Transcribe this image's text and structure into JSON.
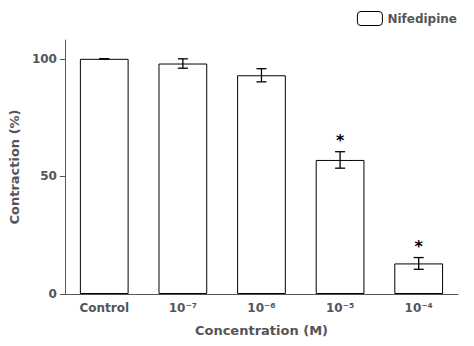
{
  "chart_data": {
    "type": "bar",
    "categories": [
      "Control",
      "10⁻⁷",
      "10⁻⁶",
      "10⁻⁵",
      "10⁻⁴"
    ],
    "series": [
      {
        "name": "Nifedipine",
        "color": "#ffffff",
        "values": [
          100,
          98,
          93,
          57,
          13
        ],
        "errors": [
          0,
          2.0,
          2.8,
          3.5,
          2.5
        ]
      }
    ],
    "xlabel": "Concentration (M)",
    "ylabel": "Contraction (%)",
    "ylim": [
      0,
      108
    ],
    "yticks": [
      0,
      50,
      100
    ],
    "annotations": [
      {
        "category": "10⁻⁵",
        "text": "*"
      },
      {
        "category": "10⁻⁴",
        "text": "*"
      }
    ],
    "legend": "upper right",
    "grid": false
  }
}
